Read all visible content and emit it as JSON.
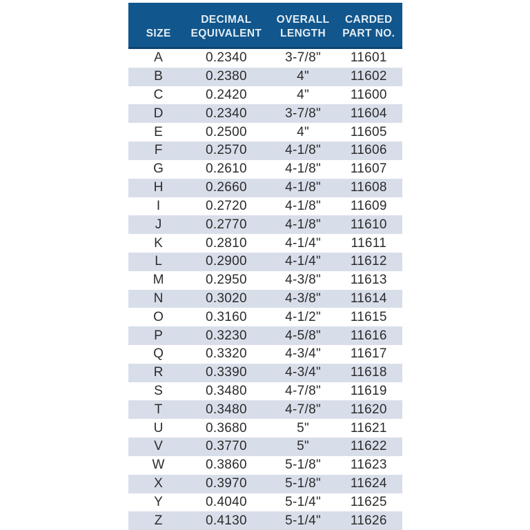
{
  "chart_data": {
    "type": "table",
    "columns": [
      "SIZE",
      "DECIMAL EQUIVALENT",
      "OVERALL LENGTH",
      "CARDED PART NO."
    ],
    "header_lines": {
      "size": "SIZE",
      "decimal": "DECIMAL\nEQUIVALENT",
      "length": "OVERALL\nLENGTH",
      "part": "CARDED\nPART NO."
    },
    "rows": [
      {
        "size": "A",
        "decimal": "0.2340",
        "length": "3-7/8\"",
        "part": "11601"
      },
      {
        "size": "B",
        "decimal": "0.2380",
        "length": "4\"",
        "part": "11602"
      },
      {
        "size": "C",
        "decimal": "0.2420",
        "length": "4\"",
        "part": "11600"
      },
      {
        "size": "D",
        "decimal": "0.2340",
        "length": "3-7/8\"",
        "part": "11604"
      },
      {
        "size": "E",
        "decimal": "0.2500",
        "length": "4\"",
        "part": "11605"
      },
      {
        "size": "F",
        "decimal": "0.2570",
        "length": "4-1/8\"",
        "part": "11606"
      },
      {
        "size": "G",
        "decimal": "0.2610",
        "length": "4-1/8\"",
        "part": "11607"
      },
      {
        "size": "H",
        "decimal": "0.2660",
        "length": "4-1/8\"",
        "part": "11608"
      },
      {
        "size": "I",
        "decimal": "0.2720",
        "length": "4-1/8\"",
        "part": "11609"
      },
      {
        "size": "J",
        "decimal": "0.2770",
        "length": "4-1/8\"",
        "part": "11610"
      },
      {
        "size": "K",
        "decimal": "0.2810",
        "length": "4-1/4\"",
        "part": "11611"
      },
      {
        "size": "L",
        "decimal": "0.2900",
        "length": "4-1/4\"",
        "part": "11612"
      },
      {
        "size": "M",
        "decimal": "0.2950",
        "length": "4-3/8\"",
        "part": "11613"
      },
      {
        "size": "N",
        "decimal": "0.3020",
        "length": "4-3/8\"",
        "part": "11614"
      },
      {
        "size": "O",
        "decimal": "0.3160",
        "length": "4-1/2\"",
        "part": "11615"
      },
      {
        "size": "P",
        "decimal": "0.3230",
        "length": "4-5/8\"",
        "part": "11616"
      },
      {
        "size": "Q",
        "decimal": "0.3320",
        "length": "4-3/4\"",
        "part": "11617"
      },
      {
        "size": "R",
        "decimal": "0.3390",
        "length": "4-3/4\"",
        "part": "11618"
      },
      {
        "size": "S",
        "decimal": "0.3480",
        "length": "4-7/8\"",
        "part": "11619"
      },
      {
        "size": "T",
        "decimal": "0.3480",
        "length": "4-7/8\"",
        "part": "11620"
      },
      {
        "size": "U",
        "decimal": "0.3680",
        "length": "5\"",
        "part": "11621"
      },
      {
        "size": "V",
        "decimal": "0.3770",
        "length": "5\"",
        "part": "11622"
      },
      {
        "size": "W",
        "decimal": "0.3860",
        "length": "5-1/8\"",
        "part": "11623"
      },
      {
        "size": "X",
        "decimal": "0.3970",
        "length": "5-1/8\"",
        "part": "11624"
      },
      {
        "size": "Y",
        "decimal": "0.4040",
        "length": "5-1/4\"",
        "part": "11625"
      },
      {
        "size": "Z",
        "decimal": "0.4130",
        "length": "5-1/4\"",
        "part": "11626"
      }
    ]
  },
  "colors": {
    "page_bg": "#FFFFFF",
    "header_bg": "#11568C",
    "header_border": "#0D4470",
    "header_text": "#E4EDF4",
    "row_bg": "#FFFFFF",
    "row_stripe": "#D8DEE9",
    "cell_text": "#2B2B2B"
  }
}
